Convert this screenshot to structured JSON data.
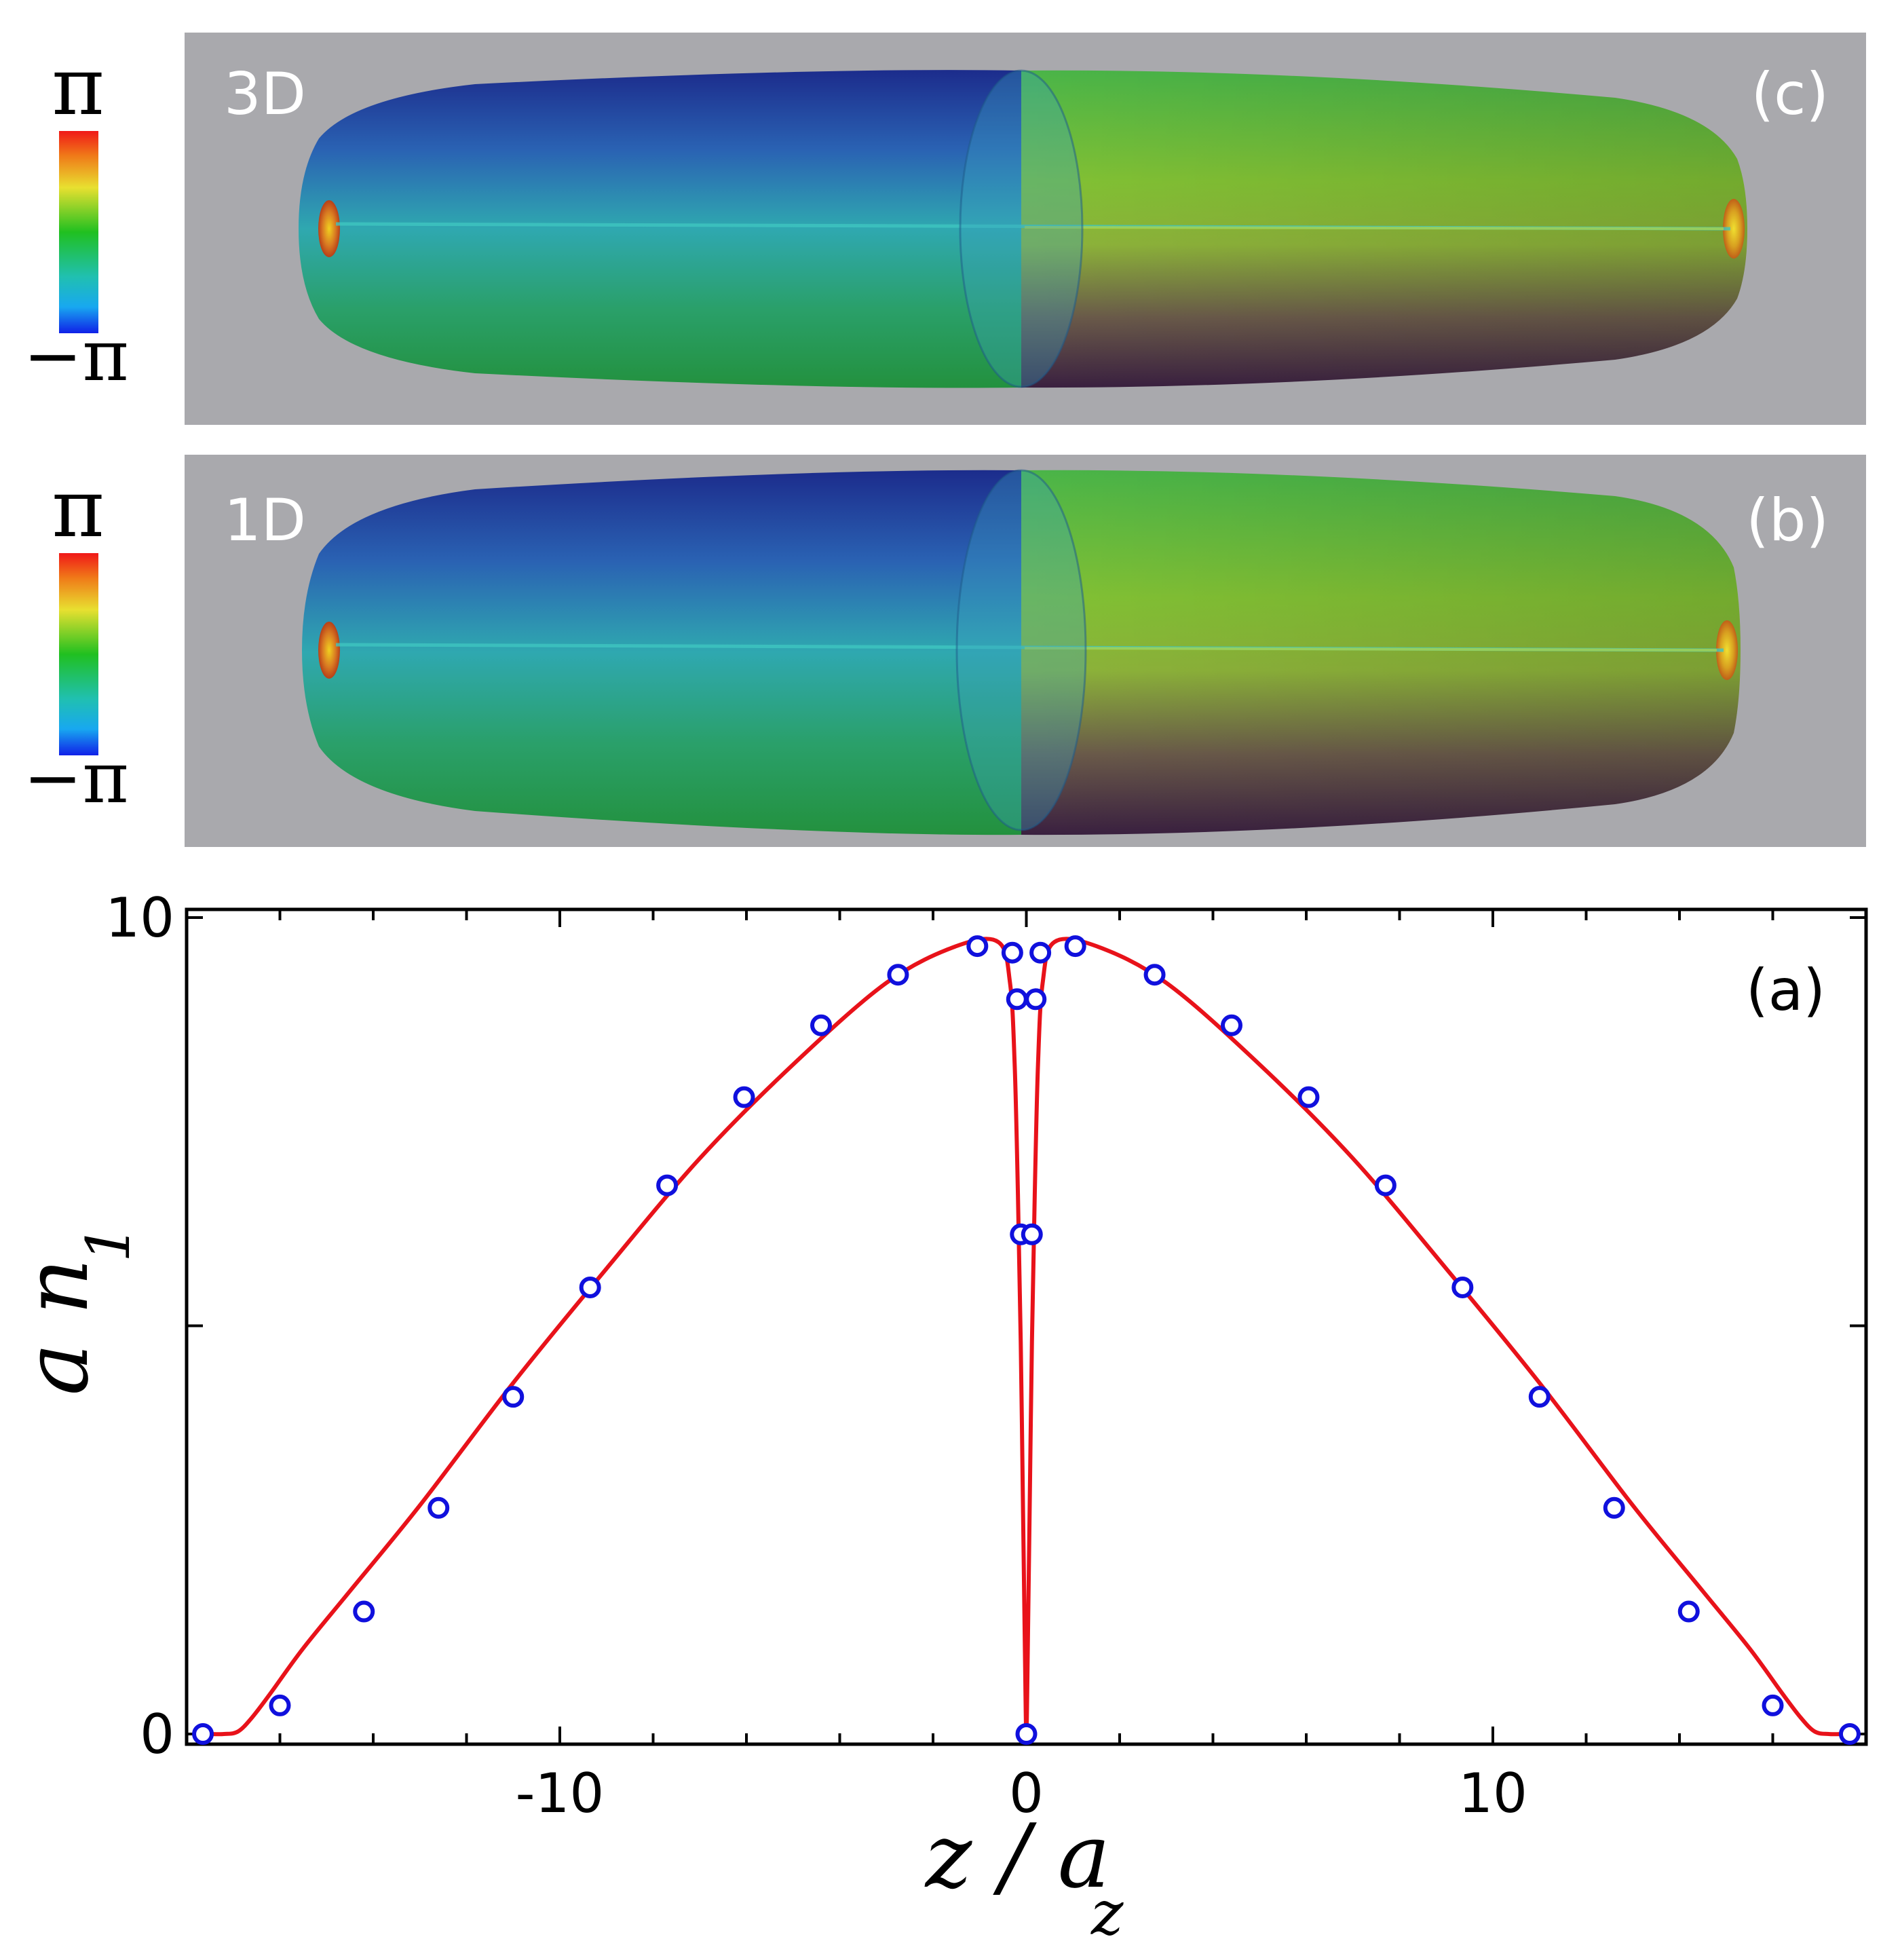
{
  "panels": {
    "c": {
      "tag": "3D",
      "label": "(c)"
    },
    "b": {
      "tag": "1D",
      "label": "(b)"
    },
    "a": {
      "label": "(a)"
    }
  },
  "colorbar": {
    "top_label": "π",
    "bottom_label": "−π"
  },
  "colors": {
    "panel_background": "#a9a9ad",
    "curve": "#e8121a",
    "markers": "#1010dd",
    "blob_left": "#1f3fa8",
    "blob_right": "#7fbf2a"
  },
  "chart_data": {
    "type": "line",
    "title": "",
    "xlabel": {
      "main": "z / a",
      "sub": "z"
    },
    "ylabel": {
      "main": "a n",
      "sub": "1"
    },
    "xlim": [
      -18,
      18
    ],
    "ylim": [
      0,
      10
    ],
    "xticks": [
      -10,
      0,
      10
    ],
    "xtick_labels": [
      "-10",
      "0",
      "10"
    ],
    "yticks": [
      0,
      5,
      10
    ],
    "ytick_labels": [
      "0",
      "",
      "10"
    ],
    "grid": false,
    "legend": "none",
    "series": [
      {
        "kind": "line",
        "x": [
          -17.5,
          -17.2,
          -16.9,
          -16.6,
          -16.2,
          -15.5,
          -14.5,
          -13.0,
          -11.0,
          -9.0,
          -7.0,
          -5.0,
          -3.0,
          -1.5,
          -0.6,
          -0.35,
          -0.25,
          -0.18,
          -0.12,
          -0.07,
          -0.03,
          0.0,
          0.03,
          0.07,
          0.12,
          0.18,
          0.25,
          0.35,
          0.6,
          1.5,
          3.0,
          5.0,
          7.0,
          9.0,
          11.0,
          13.0,
          14.5,
          15.5,
          16.2,
          16.6,
          16.9,
          17.2,
          17.5
        ],
        "y": [
          0.0,
          0.0,
          0.03,
          0.2,
          0.5,
          1.05,
          1.75,
          2.8,
          4.3,
          5.7,
          7.05,
          8.2,
          9.2,
          9.65,
          9.7,
          9.2,
          8.2,
          6.6,
          4.8,
          2.7,
          1.0,
          0.0,
          1.0,
          2.7,
          4.8,
          6.6,
          8.2,
          9.2,
          9.7,
          9.65,
          9.2,
          8.2,
          7.05,
          5.7,
          4.3,
          2.8,
          1.75,
          1.05,
          0.5,
          0.2,
          0.03,
          0.0,
          0.0
        ]
      },
      {
        "kind": "markers",
        "x": [
          -17.65,
          -16.0,
          -14.2,
          -12.6,
          -11.0,
          -9.35,
          -7.7,
          -6.05,
          -4.4,
          -2.75,
          -1.05,
          -0.3,
          -0.2,
          -0.12,
          0.0,
          0.12,
          0.2,
          0.3,
          1.05,
          2.75,
          4.4,
          6.05,
          7.7,
          9.35,
          11.0,
          12.6,
          14.2,
          16.0,
          17.65
        ],
        "y": [
          0.0,
          0.35,
          1.5,
          2.77,
          4.13,
          5.47,
          6.72,
          7.8,
          8.68,
          9.3,
          9.65,
          9.57,
          9.0,
          6.12,
          0.0,
          6.12,
          9.0,
          9.57,
          9.65,
          9.3,
          8.68,
          7.8,
          6.72,
          5.47,
          4.13,
          2.77,
          1.5,
          0.35,
          0.0
        ]
      }
    ]
  }
}
